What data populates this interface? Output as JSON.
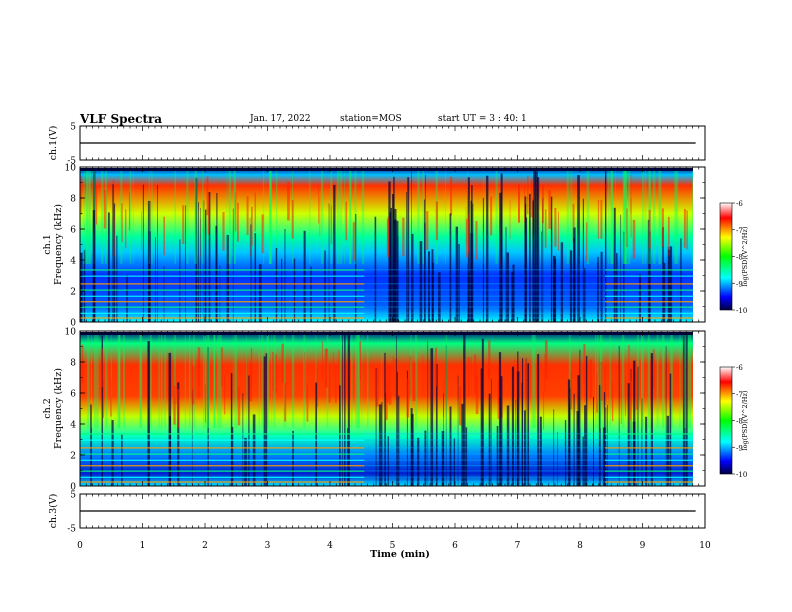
{
  "header": {
    "title": "VLF Spectra",
    "date": "Jan. 17, 2022",
    "station": "station=MOS",
    "start": "start UT = 3 : 40: 1"
  },
  "chart_data": [
    {
      "type": "line",
      "ylabel": "ch.1(V)",
      "ylim": [
        -5,
        5
      ],
      "yticks": [
        "5",
        "-5"
      ],
      "series": [
        {
          "x": [
            0,
            9.85
          ],
          "y": [
            0,
            0
          ]
        }
      ]
    },
    {
      "type": "heatmap",
      "ylabel": "ch.1 Frequency (kHz)",
      "ylim": [
        0,
        10
      ],
      "yticks": [
        "0",
        "2",
        "4",
        "6",
        "8",
        "10"
      ],
      "colorbar": {
        "label": "log(PSD)(V^2/Hz)",
        "range": [
          -10,
          -6
        ],
        "ticks": [
          "-6",
          "-7",
          "-8",
          "-9",
          "-10"
        ]
      }
    },
    {
      "type": "heatmap",
      "ylabel": "ch.2 Frequency (kHz)",
      "ylim": [
        0,
        10
      ],
      "yticks": [
        "0",
        "2",
        "4",
        "6",
        "8",
        "10"
      ],
      "colorbar": {
        "label": "log(PSD)(V^2/Hz)",
        "range": [
          -10,
          -6
        ],
        "ticks": [
          "-6",
          "-7",
          "-8",
          "-9",
          "-10"
        ]
      }
    },
    {
      "type": "line",
      "ylabel": "ch.3(V)",
      "ylim": [
        -5,
        5
      ],
      "yticks": [
        "5",
        "-5"
      ],
      "series": [
        {
          "x": [
            0,
            9.85
          ],
          "y": [
            0,
            0
          ]
        }
      ]
    }
  ],
  "xaxis": {
    "label": "Time (min)",
    "xlim": [
      0,
      10
    ],
    "ticks": [
      "0",
      "1",
      "2",
      "3",
      "4",
      "5",
      "6",
      "7",
      "8",
      "9",
      "10"
    ]
  },
  "colors": {
    "low": "#000080",
    "mid_low": "#00ffff",
    "mid": "#00ff00",
    "mid_high": "#ffff00",
    "high": "#ff0000",
    "frame": "#000000"
  }
}
